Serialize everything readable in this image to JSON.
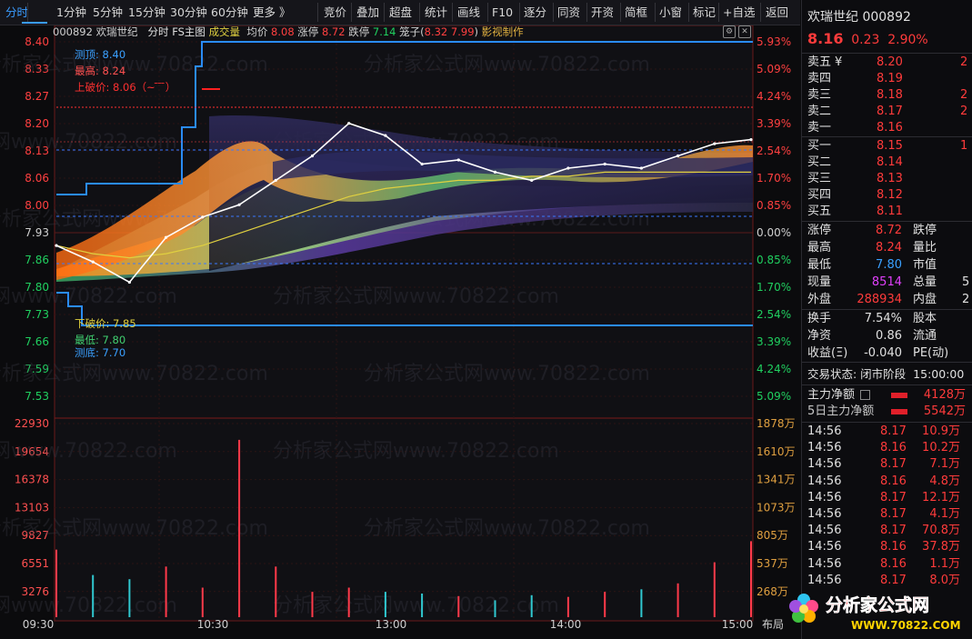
{
  "toolbar": {
    "items": [
      "分时",
      "1分钟",
      "5分钟",
      "15分钟",
      "30分钟",
      "60分钟",
      "更多 》",
      "竞价",
      "叠加",
      "超盘",
      "统计",
      "画线",
      "F10",
      "逐分",
      "同资",
      "开资",
      "简框",
      "小窗",
      "标记",
      "+自选",
      "返回"
    ],
    "active": "分时"
  },
  "chart_header": {
    "code": "000892",
    "name": "欢瑞世纪",
    "mode": "分时",
    "indicator": "FS主图",
    "volume_label": "成交量",
    "avg_label": "均价",
    "avg_value": "8.08",
    "limit_up_label": "涨停",
    "limit_up_value": "8.72",
    "limit_down_label": "跌停",
    "limit_down_value": "7.14",
    "cage_label": "笼子(",
    "cage_high": "8.32",
    "cage_low": "7.99",
    "cage_close": ")",
    "credit": "影视制作"
  },
  "annotations": {
    "top_probe": "测顶: 8.40",
    "high": "最高: 8.24",
    "up_break": "上破价: 8.06（~ ̄ ̄ ̄）",
    "down_break": "下破价: 7.85",
    "low": "最低: 7.80",
    "bottom_probe": "测底: 7.70"
  },
  "price_axis_left": [
    "8.40",
    "8.33",
    "8.27",
    "8.20",
    "8.13",
    "8.06",
    "8.00",
    "7.93",
    "7.86",
    "7.80",
    "7.73",
    "7.66",
    "7.59",
    "7.53"
  ],
  "pct_axis_right": [
    "5.93%",
    "5.09%",
    "4.24%",
    "3.39%",
    "2.54%",
    "1.70%",
    "0.85%",
    "0.00%",
    "0.85%",
    "1.70%",
    "2.54%",
    "3.39%",
    "4.24%",
    "5.09%"
  ],
  "volume_axis_left": [
    "22930",
    "19654",
    "16378",
    "13103",
    "9827",
    "6551",
    "3276"
  ],
  "volume_axis_right": [
    "1878万",
    "1610万",
    "1341万",
    "1073万",
    "805万",
    "537万",
    "268万"
  ],
  "time_axis": [
    "09:30",
    "10:30",
    "13:00",
    "14:00",
    "15:00"
  ],
  "corner_label": "布局",
  "watermark": "分析家公式网www.70822.com",
  "quote": {
    "name": "欢瑞世纪",
    "code": "000892",
    "price": "8.16",
    "change": "0.23",
    "change_pct": "2.90%",
    "asks": [
      {
        "label": "卖五",
        "price": "8.20",
        "vol": "2"
      },
      {
        "label": "卖四",
        "price": "8.19",
        "vol": ""
      },
      {
        "label": "卖三",
        "price": "8.18",
        "vol": "2"
      },
      {
        "label": "卖二",
        "price": "8.17",
        "vol": "2"
      },
      {
        "label": "卖一",
        "price": "8.16",
        "vol": ""
      }
    ],
    "bids": [
      {
        "label": "买一",
        "price": "8.15",
        "vol": "1"
      },
      {
        "label": "买二",
        "price": "8.14",
        "vol": ""
      },
      {
        "label": "买三",
        "price": "8.13",
        "vol": ""
      },
      {
        "label": "买四",
        "price": "8.12",
        "vol": ""
      },
      {
        "label": "买五",
        "price": "8.11",
        "vol": ""
      }
    ],
    "yen": "¥",
    "stats": [
      {
        "l1": "涨停",
        "v1": "8.72",
        "l2": "跌停",
        "v2": ""
      },
      {
        "l1": "最高",
        "v1": "8.24",
        "l2": "量比",
        "v2": ""
      },
      {
        "l1": "最低",
        "v1": "7.80",
        "l2": "市值",
        "v2": ""
      },
      {
        "l1": "现量",
        "v1": "8514",
        "l2": "总量",
        "v2": "5"
      },
      {
        "l1": "外盘",
        "v1": "288934",
        "l2": "内盘",
        "v2": "2"
      }
    ],
    "stats2": [
      {
        "l1": "换手",
        "v1": "7.54%",
        "l2": "股本"
      },
      {
        "l1": "净资",
        "v1": "0.86",
        "l2": "流通"
      },
      {
        "l1": "收益(Ξ)",
        "v1": "-0.040",
        "l2": "PE(动)"
      }
    ],
    "trade_status_label": "交易状态: 闭市阶段",
    "trade_status_time": "15:00:00",
    "main_net_label": "主力净额",
    "main_net_value": "4128万",
    "main_net5_label": "5日主力净额",
    "main_net5_value": "5542万",
    "ticks": [
      {
        "t": "14:56",
        "p": "8.17",
        "v": "10.9万"
      },
      {
        "t": "14:56",
        "p": "8.16",
        "v": "10.2万"
      },
      {
        "t": "14:56",
        "p": "8.17",
        "v": "7.1万"
      },
      {
        "t": "14:56",
        "p": "8.16",
        "v": "4.8万"
      },
      {
        "t": "14:56",
        "p": "8.17",
        "v": "12.1万"
      },
      {
        "t": "14:56",
        "p": "8.17",
        "v": "4.1万"
      },
      {
        "t": "14:56",
        "p": "8.17",
        "v": "70.8万"
      },
      {
        "t": "14:56",
        "p": "8.16",
        "v": "37.8万"
      },
      {
        "t": "14:56",
        "p": "8.16",
        "v": "1.1万"
      },
      {
        "t": "14:56",
        "p": "8.17",
        "v": "8.0万"
      }
    ]
  },
  "logo": {
    "text": "分析家公式网",
    "url": "WWW.70822.COM"
  },
  "chart_data": {
    "type": "line",
    "title": "",
    "prev_close": 7.93,
    "y_range": [
      7.46,
      8.4
    ],
    "series": [
      {
        "name": "均价",
        "values": [
          7.9,
          7.88,
          7.87,
          7.88,
          7.9,
          7.93,
          7.96,
          7.99,
          8.02,
          8.04,
          8.05,
          8.06,
          8.06,
          8.07,
          8.07,
          8.08,
          8.08,
          8.08,
          8.08,
          8.08
        ]
      }
    ],
    "price": [
      7.9,
      7.86,
      7.81,
      7.92,
      7.97,
      8.0,
      8.06,
      8.12,
      8.2,
      8.17,
      8.1,
      8.11,
      8.08,
      8.06,
      8.09,
      8.1,
      8.09,
      8.12,
      8.15,
      8.16
    ],
    "volume": [
      8000,
      5000,
      4500,
      6000,
      3500,
      21000,
      6000,
      3000,
      3500,
      3000,
      2800,
      2500,
      2000,
      2600,
      2400,
      3000,
      3300,
      4000,
      6500,
      9000
    ]
  }
}
